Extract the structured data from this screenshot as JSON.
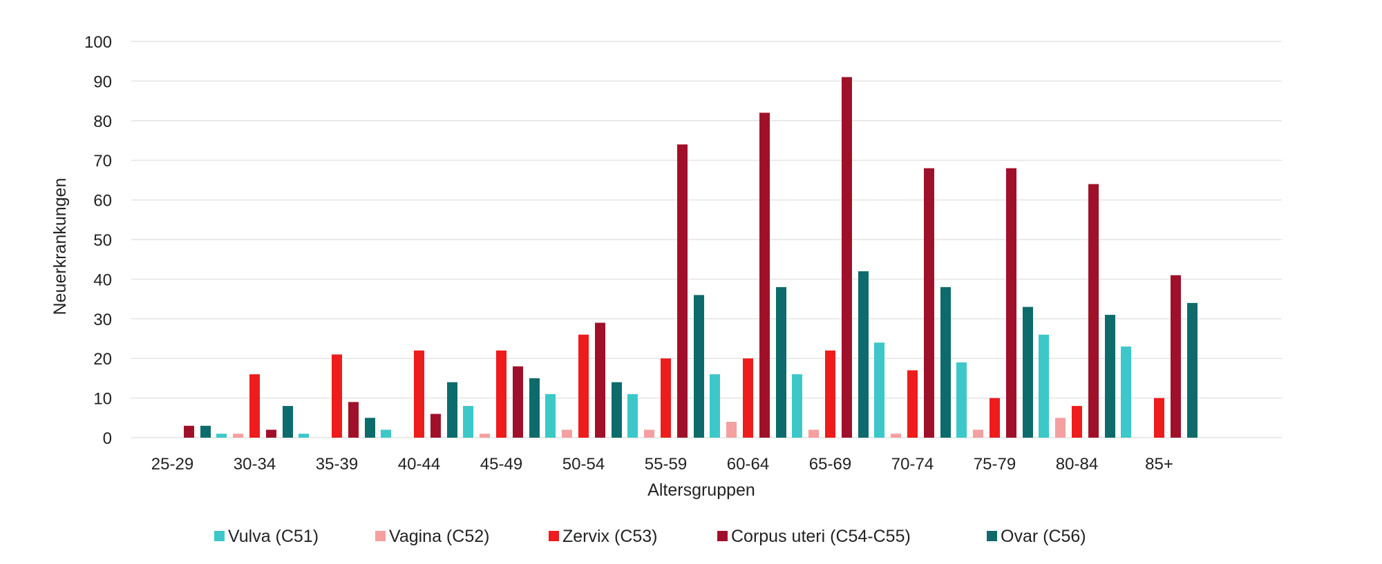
{
  "chart_data": {
    "type": "bar",
    "title": "",
    "xlabel": "Altersgruppen",
    "ylabel": "Neuerkrankungen",
    "ylim": [
      0,
      100
    ],
    "yticks": [
      0,
      10,
      20,
      30,
      40,
      50,
      60,
      70,
      80,
      90,
      100
    ],
    "grid": true,
    "legend_position": "bottom",
    "categories": [
      "25-29",
      "30-34",
      "35-39",
      "40-44",
      "45-49",
      "50-54",
      "55-59",
      "60-64",
      "65-69",
      "70-74",
      "75-79",
      "80-84",
      "85+"
    ],
    "series": [
      {
        "name": "Vulva (C51)",
        "color": "#3cc8c8",
        "values": [
          0,
          1,
          1,
          2,
          8,
          11,
          11,
          16,
          16,
          24,
          19,
          26,
          23
        ]
      },
      {
        "name": "Vagina (C52)",
        "color": "#f4a0a0",
        "values": [
          0,
          1,
          0,
          0,
          1,
          2,
          2,
          4,
          2,
          1,
          2,
          5,
          0
        ]
      },
      {
        "name": "Zervix (C53)",
        "color": "#ee1c1c",
        "values": [
          0,
          16,
          21,
          22,
          22,
          26,
          20,
          20,
          22,
          17,
          10,
          8,
          10
        ]
      },
      {
        "name": "Corpus uteri (C54-C55)",
        "color": "#a0102a",
        "values": [
          3,
          2,
          9,
          6,
          18,
          29,
          74,
          82,
          91,
          68,
          68,
          64,
          41
        ]
      },
      {
        "name": "Ovar (C56)",
        "color": "#0d6b6b",
        "values": [
          3,
          8,
          5,
          14,
          15,
          14,
          36,
          38,
          42,
          38,
          33,
          31,
          34
        ]
      }
    ]
  }
}
